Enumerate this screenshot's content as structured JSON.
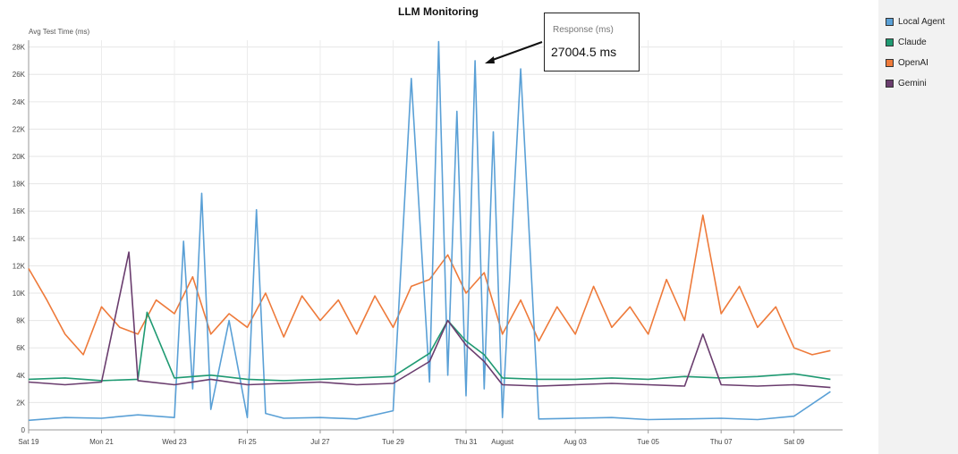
{
  "chart_data": {
    "type": "line",
    "title": "LLM Monitoring",
    "ylabel": "Avg Test Time (ms)",
    "xlabel": "",
    "ylim": [
      0,
      28500
    ],
    "yticks": [
      "0",
      "2K",
      "4K",
      "6K",
      "8K",
      "10K",
      "12K",
      "14K",
      "16K",
      "18K",
      "20K",
      "22K",
      "24K",
      "26K",
      "28K"
    ],
    "ytick_values": [
      0,
      2000,
      4000,
      6000,
      8000,
      10000,
      12000,
      14000,
      16000,
      18000,
      20000,
      22000,
      24000,
      26000,
      28000
    ],
    "xlim": [
      "2023-08-19",
      "2023-09-10T08:00"
    ],
    "xticks": [
      "Sat 19",
      "Mon 21",
      "Wed 23",
      "Fri 25",
      "Jul 27",
      "Tue 29",
      "Thu 31",
      "August",
      "Aug 03",
      "Tue 05",
      "Thu 07",
      "Sat 09"
    ],
    "xtick_dates": [
      "2023-08-19",
      "2023-08-21",
      "2023-08-23",
      "2023-08-25",
      "2023-08-27",
      "2023-08-29",
      "2023-08-31",
      "2023-09-01",
      "2023-09-03",
      "2023-09-05",
      "2023-09-07",
      "2023-09-09"
    ],
    "grid": true,
    "legend_position": "right",
    "series": [
      {
        "name": "Local Agent",
        "color": "#5aa0d6",
        "x": [
          "2023-08-19",
          "2023-08-20",
          "2023-08-21",
          "2023-08-22",
          "2023-08-23",
          "2023-08-23T06:00",
          "2023-08-23T12:00",
          "2023-08-23T18:00",
          "2023-08-24",
          "2023-08-24T12:00",
          "2023-08-25",
          "2023-08-25T06:00",
          "2023-08-25T12:00",
          "2023-08-26",
          "2023-08-27",
          "2023-08-28",
          "2023-08-29",
          "2023-08-29T12:00",
          "2023-08-30",
          "2023-08-30T06:00",
          "2023-08-30T12:00",
          "2023-08-30T18:00",
          "2023-08-31",
          "2023-08-31T06:00",
          "2023-08-31T12:00",
          "2023-08-31T18:00",
          "2023-09-01",
          "2023-09-01T12:00",
          "2023-09-02",
          "2023-09-03",
          "2023-09-04",
          "2023-09-05",
          "2023-09-06",
          "2023-09-07",
          "2023-09-08",
          "2023-09-09",
          "2023-09-10"
        ],
        "values": [
          700,
          900,
          850,
          1100,
          900,
          13800,
          3000,
          17300,
          1500,
          8000,
          900,
          16100,
          1200,
          850,
          900,
          800,
          1400,
          25700,
          3500,
          28400,
          4000,
          23300,
          2500,
          27000,
          3000,
          21800,
          900,
          26400,
          800,
          850,
          900,
          750,
          800,
          850,
          750,
          1000,
          2800
        ]
      },
      {
        "name": "Claude",
        "color": "#1f9a72",
        "x": [
          "2023-08-19",
          "2023-08-20",
          "2023-08-21",
          "2023-08-22",
          "2023-08-22T06:00",
          "2023-08-23",
          "2023-08-24",
          "2023-08-25",
          "2023-08-26",
          "2023-08-27",
          "2023-08-28",
          "2023-08-29",
          "2023-08-30",
          "2023-08-30T12:00",
          "2023-08-31",
          "2023-08-31T12:00",
          "2023-09-01",
          "2023-09-02",
          "2023-09-03",
          "2023-09-04",
          "2023-09-05",
          "2023-09-06",
          "2023-09-07",
          "2023-09-08",
          "2023-09-09",
          "2023-09-10"
        ],
        "values": [
          3700,
          3800,
          3600,
          3700,
          8600,
          3800,
          4000,
          3700,
          3600,
          3700,
          3800,
          3900,
          5600,
          8000,
          6500,
          5500,
          3800,
          3700,
          3700,
          3800,
          3700,
          3900,
          3800,
          3900,
          4100,
          3700
        ]
      },
      {
        "name": "OpenAI",
        "color": "#ee7a3a",
        "x": [
          "2023-08-19",
          "2023-08-19T12:00",
          "2023-08-20",
          "2023-08-20T12:00",
          "2023-08-21",
          "2023-08-21T12:00",
          "2023-08-22",
          "2023-08-22T12:00",
          "2023-08-23",
          "2023-08-23T12:00",
          "2023-08-24",
          "2023-08-24T12:00",
          "2023-08-25",
          "2023-08-25T12:00",
          "2023-08-26",
          "2023-08-26T12:00",
          "2023-08-27",
          "2023-08-27T12:00",
          "2023-08-28",
          "2023-08-28T12:00",
          "2023-08-29",
          "2023-08-29T12:00",
          "2023-08-30",
          "2023-08-30T12:00",
          "2023-08-31",
          "2023-08-31T12:00",
          "2023-09-01",
          "2023-09-01T12:00",
          "2023-09-02",
          "2023-09-02T12:00",
          "2023-09-03",
          "2023-09-03T12:00",
          "2023-09-04",
          "2023-09-04T12:00",
          "2023-09-05",
          "2023-09-05T12:00",
          "2023-09-06",
          "2023-09-06T12:00",
          "2023-09-07",
          "2023-09-07T12:00",
          "2023-09-08",
          "2023-09-08T12:00",
          "2023-09-09",
          "2023-09-09T12:00",
          "2023-09-10"
        ],
        "values": [
          11800,
          9500,
          7000,
          5500,
          9000,
          7500,
          7000,
          9500,
          8500,
          11200,
          7000,
          8500,
          7500,
          10000,
          6800,
          9800,
          8000,
          9500,
          7000,
          9800,
          7500,
          10500,
          11000,
          12800,
          10000,
          11500,
          7000,
          9500,
          6500,
          9000,
          7000,
          10500,
          7500,
          9000,
          7000,
          11000,
          8000,
          15700,
          8500,
          10500,
          7500,
          9000,
          6000,
          5500,
          5800
        ]
      },
      {
        "name": "Gemini",
        "color": "#6a3d6e",
        "x": [
          "2023-08-19",
          "2023-08-20",
          "2023-08-21",
          "2023-08-21T18:00",
          "2023-08-22",
          "2023-08-23",
          "2023-08-24",
          "2023-08-25",
          "2023-08-26",
          "2023-08-27",
          "2023-08-28",
          "2023-08-29",
          "2023-08-30",
          "2023-08-30T12:00",
          "2023-08-31",
          "2023-08-31T12:00",
          "2023-09-01",
          "2023-09-02",
          "2023-09-03",
          "2023-09-04",
          "2023-09-05",
          "2023-09-06",
          "2023-09-06T12:00",
          "2023-09-07",
          "2023-09-08",
          "2023-09-09",
          "2023-09-10"
        ],
        "values": [
          3500,
          3300,
          3500,
          13000,
          3600,
          3300,
          3700,
          3300,
          3400,
          3500,
          3300,
          3400,
          5000,
          8000,
          6200,
          5000,
          3300,
          3200,
          3300,
          3400,
          3300,
          3200,
          7000,
          3300,
          3200,
          3300,
          3100
        ]
      }
    ],
    "tooltip": {
      "label": "Response (ms)",
      "value": "27004.5 ms"
    }
  }
}
